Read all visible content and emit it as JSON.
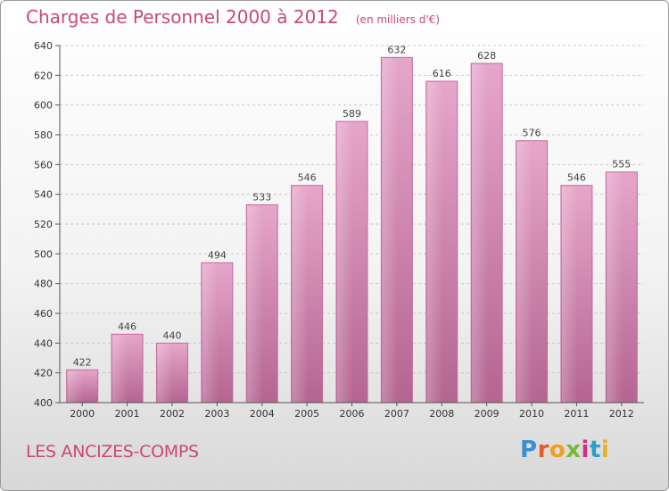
{
  "title": "Charges de Personnel 2000 à 2012",
  "subtitle": "(en milliers d'€)",
  "place_name": "LES ANCIZES-COMPS",
  "logo": {
    "letters": [
      "P",
      "r",
      "o",
      "x",
      "i",
      "t",
      "i"
    ],
    "colors": [
      "#3a8fd0",
      "#e85a2a",
      "#f0a020",
      "#7ab830",
      "#d03080",
      "#2aa0c8",
      "#e8b020"
    ]
  },
  "colors": {
    "accent": "#c8487a",
    "bar_light": "#e6a6ca",
    "bar_dark": "#b46590"
  },
  "chart_data": {
    "type": "bar",
    "title": "Charges de Personnel 2000 à 2012",
    "subtitle": "(en milliers d'€)",
    "xlabel": "",
    "ylabel": "",
    "categories": [
      "2000",
      "2001",
      "2002",
      "2003",
      "2004",
      "2005",
      "2006",
      "2007",
      "2008",
      "2009",
      "2010",
      "2011",
      "2012"
    ],
    "values": [
      422,
      446,
      440,
      494,
      533,
      546,
      589,
      632,
      616,
      628,
      576,
      546,
      555
    ],
    "ylim": [
      400,
      640
    ],
    "yticks": [
      400,
      420,
      440,
      460,
      480,
      500,
      520,
      540,
      560,
      580,
      600,
      620,
      640
    ],
    "grid": true
  }
}
